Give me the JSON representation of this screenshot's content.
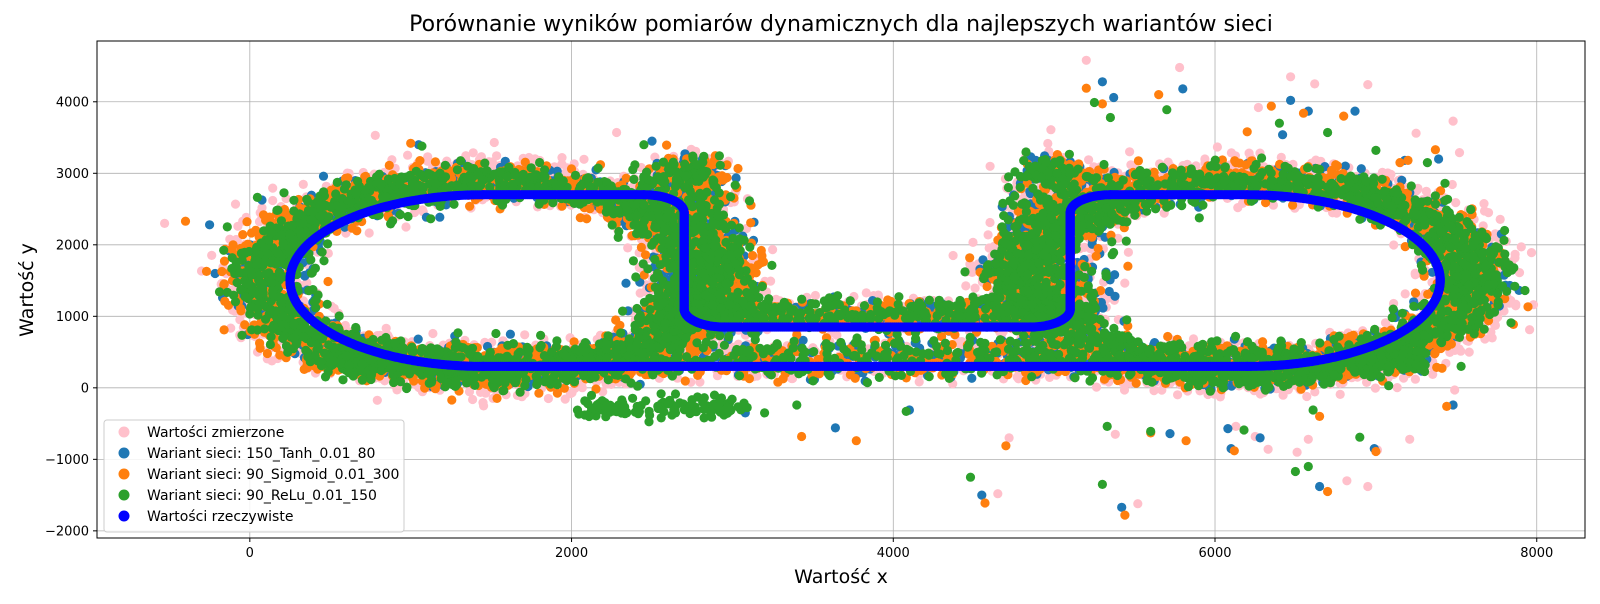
{
  "chart_data": {
    "type": "scatter",
    "title": "Porównanie wyników pomiarów dynamicznych dla najlepszych wariantów sieci",
    "xlabel": "Wartość x",
    "ylabel": "Wartość y",
    "xlim": [
      -950,
      8300
    ],
    "ylim": [
      -2100,
      4850
    ],
    "x_ticks": [
      0,
      2000,
      4000,
      6000,
      8000
    ],
    "y_ticks": [
      -2000,
      -1000,
      0,
      1000,
      2000,
      3000,
      4000
    ],
    "grid": true,
    "legend_position": "lower-left",
    "series": [
      {
        "name": "Wartości zmierzone",
        "color": "#ffc0cb",
        "points": [
          [
            -530,
            2300
          ],
          [
            780,
            3530
          ],
          [
            1520,
            3430
          ],
          [
            2280,
            3570
          ],
          [
            4980,
            3610
          ],
          [
            5200,
            4580
          ],
          [
            5780,
            4480
          ],
          [
            6270,
            3920
          ],
          [
            6470,
            4350
          ],
          [
            6620,
            4250
          ],
          [
            6950,
            4240
          ],
          [
            7480,
            3730
          ],
          [
            7520,
            3290
          ],
          [
            7250,
            3560
          ],
          [
            7700,
            2450
          ],
          [
            7870,
            1170
          ],
          [
            7690,
            1050
          ],
          [
            7680,
            910
          ],
          [
            7580,
            500
          ],
          [
            7200,
            200
          ],
          [
            7490,
            -30
          ],
          [
            6130,
            -540
          ],
          [
            6250,
            -680
          ],
          [
            6510,
            -900
          ],
          [
            6820,
            -1300
          ],
          [
            6950,
            -1380
          ],
          [
            4650,
            -1480
          ],
          [
            5520,
            -1620
          ],
          [
            4720,
            -700
          ],
          [
            5380,
            -650
          ],
          [
            6330,
            -860
          ],
          [
            6580,
            -720
          ],
          [
            7010,
            -870
          ],
          [
            7210,
            -720
          ]
        ],
        "bands": [
          {
            "cx": 1500,
            "cy": 1540,
            "rx": 1420,
            "ry": 1380,
            "count": 1900,
            "spread": 150
          },
          {
            "cx": 6200,
            "cy": 1560,
            "rx": 1420,
            "ry": 1380,
            "count": 1900,
            "spread": 150
          },
          {
            "cx": 2720,
            "cy": 2000,
            "rx": 150,
            "ry": 1100,
            "count": 300,
            "spread": 120
          },
          {
            "cx": 5020,
            "cy": 2000,
            "rx": 150,
            "ry": 1100,
            "count": 300,
            "spread": 120
          },
          {
            "cx": 3870,
            "cy": 1050,
            "rx": 1250,
            "ry": 70,
            "count": 500,
            "spread": 90
          },
          {
            "cx": 3870,
            "cy": 400,
            "rx": 3300,
            "ry": 90,
            "count": 900,
            "spread": 110
          }
        ]
      },
      {
        "name": "Wariant sieci: 150_Tanh_0.01_80",
        "color": "#1f77b4",
        "points": [
          [
            -250,
            2280
          ],
          [
            1050,
            3400
          ],
          [
            1620,
            750
          ],
          [
            2500,
            3450
          ],
          [
            5300,
            4280
          ],
          [
            5370,
            4060
          ],
          [
            5800,
            4180
          ],
          [
            6470,
            4020
          ],
          [
            6580,
            3870
          ],
          [
            6870,
            3870
          ],
          [
            7780,
            2150
          ],
          [
            7480,
            -240
          ],
          [
            5420,
            -1670
          ],
          [
            4550,
            -1500
          ],
          [
            6650,
            -1380
          ],
          [
            6990,
            -850
          ],
          [
            6280,
            -700
          ],
          [
            5720,
            -640
          ],
          [
            4100,
            -310
          ],
          [
            3640,
            -560
          ],
          [
            3080,
            -350
          ],
          [
            6100,
            -850
          ],
          [
            6080,
            -570
          ],
          [
            6420,
            3540
          ],
          [
            6810,
            3100
          ],
          [
            7180,
            3180
          ],
          [
            7390,
            3200
          ],
          [
            6500,
            2700
          ]
        ],
        "bands": [
          {
            "cx": 1500,
            "cy": 1540,
            "rx": 1390,
            "ry": 1330,
            "count": 1500,
            "spread": 115
          },
          {
            "cx": 6200,
            "cy": 1560,
            "rx": 1390,
            "ry": 1330,
            "count": 1500,
            "spread": 115
          },
          {
            "cx": 2720,
            "cy": 2000,
            "rx": 140,
            "ry": 1080,
            "count": 260,
            "spread": 100
          },
          {
            "cx": 5040,
            "cy": 2000,
            "rx": 140,
            "ry": 1080,
            "count": 260,
            "spread": 100
          },
          {
            "cx": 3870,
            "cy": 1010,
            "rx": 1250,
            "ry": 60,
            "count": 450,
            "spread": 80
          },
          {
            "cx": 3870,
            "cy": 390,
            "rx": 3300,
            "ry": 80,
            "count": 800,
            "spread": 100
          }
        ]
      },
      {
        "name": "Wariant sieci: 90_Sigmoid_0.01_300",
        "color": "#ff7f0e",
        "points": [
          [
            -400,
            2330
          ],
          [
            -160,
            810
          ],
          [
            1000,
            3420
          ],
          [
            5200,
            4190
          ],
          [
            5300,
            3970
          ],
          [
            5650,
            4100
          ],
          [
            6350,
            3940
          ],
          [
            6550,
            3840
          ],
          [
            6800,
            3800
          ],
          [
            7200,
            3180
          ],
          [
            7370,
            3330
          ],
          [
            7660,
            2180
          ],
          [
            7440,
            -260
          ],
          [
            5440,
            -1780
          ],
          [
            4570,
            -1610
          ],
          [
            6700,
            -1450
          ],
          [
            7000,
            -890
          ],
          [
            6650,
            -400
          ],
          [
            5600,
            -630
          ],
          [
            4700,
            -810
          ],
          [
            3430,
            -680
          ],
          [
            3770,
            -740
          ],
          [
            6120,
            -880
          ],
          [
            5820,
            -740
          ],
          [
            6200,
            3580
          ],
          [
            6750,
            3120
          ],
          [
            7150,
            3150
          ],
          [
            7700,
            940
          ]
        ],
        "bands": [
          {
            "cx": 1480,
            "cy": 1540,
            "rx": 1420,
            "ry": 1350,
            "count": 1500,
            "spread": 130
          },
          {
            "cx": 6200,
            "cy": 1560,
            "rx": 1400,
            "ry": 1340,
            "count": 1500,
            "spread": 120
          },
          {
            "cx": 2750,
            "cy": 2000,
            "rx": 150,
            "ry": 1080,
            "count": 260,
            "spread": 110
          },
          {
            "cx": 5060,
            "cy": 2000,
            "rx": 140,
            "ry": 1080,
            "count": 260,
            "spread": 100
          },
          {
            "cx": 3870,
            "cy": 1010,
            "rx": 1250,
            "ry": 60,
            "count": 450,
            "spread": 80
          },
          {
            "cx": 3870,
            "cy": 390,
            "rx": 3300,
            "ry": 80,
            "count": 800,
            "spread": 100
          }
        ]
      },
      {
        "name": "Wariant sieci: 90_ReLu_0.01_150",
        "color": "#2ca02c",
        "points": [
          [
            -140,
            2250
          ],
          [
            1070,
            3380
          ],
          [
            1530,
            760
          ],
          [
            2450,
            3400
          ],
          [
            5250,
            3990
          ],
          [
            5350,
            3780
          ],
          [
            5700,
            3890
          ],
          [
            6400,
            3700
          ],
          [
            6700,
            3570
          ],
          [
            7000,
            3320
          ],
          [
            7320,
            3150
          ],
          [
            7430,
            2860
          ],
          [
            7800,
            2200
          ],
          [
            7840,
            910
          ],
          [
            7530,
            300
          ],
          [
            5300,
            -1350
          ],
          [
            4480,
            -1250
          ],
          [
            6500,
            -1170
          ],
          [
            6580,
            -1100
          ],
          [
            6900,
            -690
          ],
          [
            5330,
            -540
          ],
          [
            4080,
            -330
          ],
          [
            3200,
            -350
          ],
          [
            3400,
            -240
          ],
          [
            5600,
            -610
          ],
          [
            6180,
            -590
          ],
          [
            6610,
            -310
          ],
          [
            7080,
            30
          ]
        ],
        "bands": [
          {
            "cx": 1500,
            "cy": 1540,
            "rx": 1400,
            "ry": 1330,
            "count": 1700,
            "spread": 125
          },
          {
            "cx": 6200,
            "cy": 1560,
            "rx": 1400,
            "ry": 1330,
            "count": 1700,
            "spread": 125
          },
          {
            "cx": 2700,
            "cy": 2000,
            "rx": 150,
            "ry": 1060,
            "count": 280,
            "spread": 110
          },
          {
            "cx": 5000,
            "cy": 2000,
            "rx": 150,
            "ry": 1060,
            "count": 280,
            "spread": 110
          },
          {
            "cx": 3870,
            "cy": 1030,
            "rx": 1250,
            "ry": 70,
            "count": 480,
            "spread": 90
          },
          {
            "cx": 3870,
            "cy": 400,
            "rx": 3300,
            "ry": 90,
            "count": 900,
            "spread": 110
          },
          {
            "cx": 2550,
            "cy": -280,
            "rx": 420,
            "ry": 60,
            "count": 120,
            "spread": 70
          }
        ]
      },
      {
        "name": "Wartości rzeczywiste",
        "color": "#0000ff",
        "track": [
          {
            "type": "segment",
            "from": [
              1450,
              300
            ],
            "to": [
              6200,
              300
            ]
          },
          {
            "type": "arc",
            "center": [
              6200,
              1500
            ],
            "r": 1200,
            "from_deg": -90,
            "to_deg": 90,
            "dir": "ccw"
          },
          {
            "type": "segment",
            "from": [
              6200,
              2700
            ],
            "to": [
              5350,
              2700
            ]
          },
          {
            "type": "arc",
            "center": [
              5350,
              2450
            ],
            "r": 250,
            "from_deg": 90,
            "to_deg": 180,
            "dir": "ccw"
          },
          {
            "type": "segment",
            "from": [
              5100,
              2450
            ],
            "to": [
              5100,
              1100
            ]
          },
          {
            "type": "arc",
            "center": [
              4850,
              1100
            ],
            "r": 250,
            "from_deg": 0,
            "to_deg": -90,
            "dir": "cw"
          },
          {
            "type": "segment",
            "from": [
              4850,
              850
            ],
            "to": [
              2950,
              850
            ]
          },
          {
            "type": "arc",
            "center": [
              2950,
              1100
            ],
            "r": 250,
            "from_deg": -90,
            "to_deg": -180,
            "dir": "cw"
          },
          {
            "type": "segment",
            "from": [
              2700,
              1100
            ],
            "to": [
              2700,
              2450
            ]
          },
          {
            "type": "arc",
            "center": [
              2450,
              2450
            ],
            "r": 250,
            "from_deg": 0,
            "to_deg": 90,
            "dir": "ccw"
          },
          {
            "type": "segment",
            "from": [
              2450,
              2700
            ],
            "to": [
              1450,
              2700
            ]
          },
          {
            "type": "arc",
            "center": [
              1450,
              1500
            ],
            "r": 1200,
            "from_deg": 90,
            "to_deg": 270,
            "dir": "ccw"
          }
        ],
        "step": 12
      }
    ]
  }
}
